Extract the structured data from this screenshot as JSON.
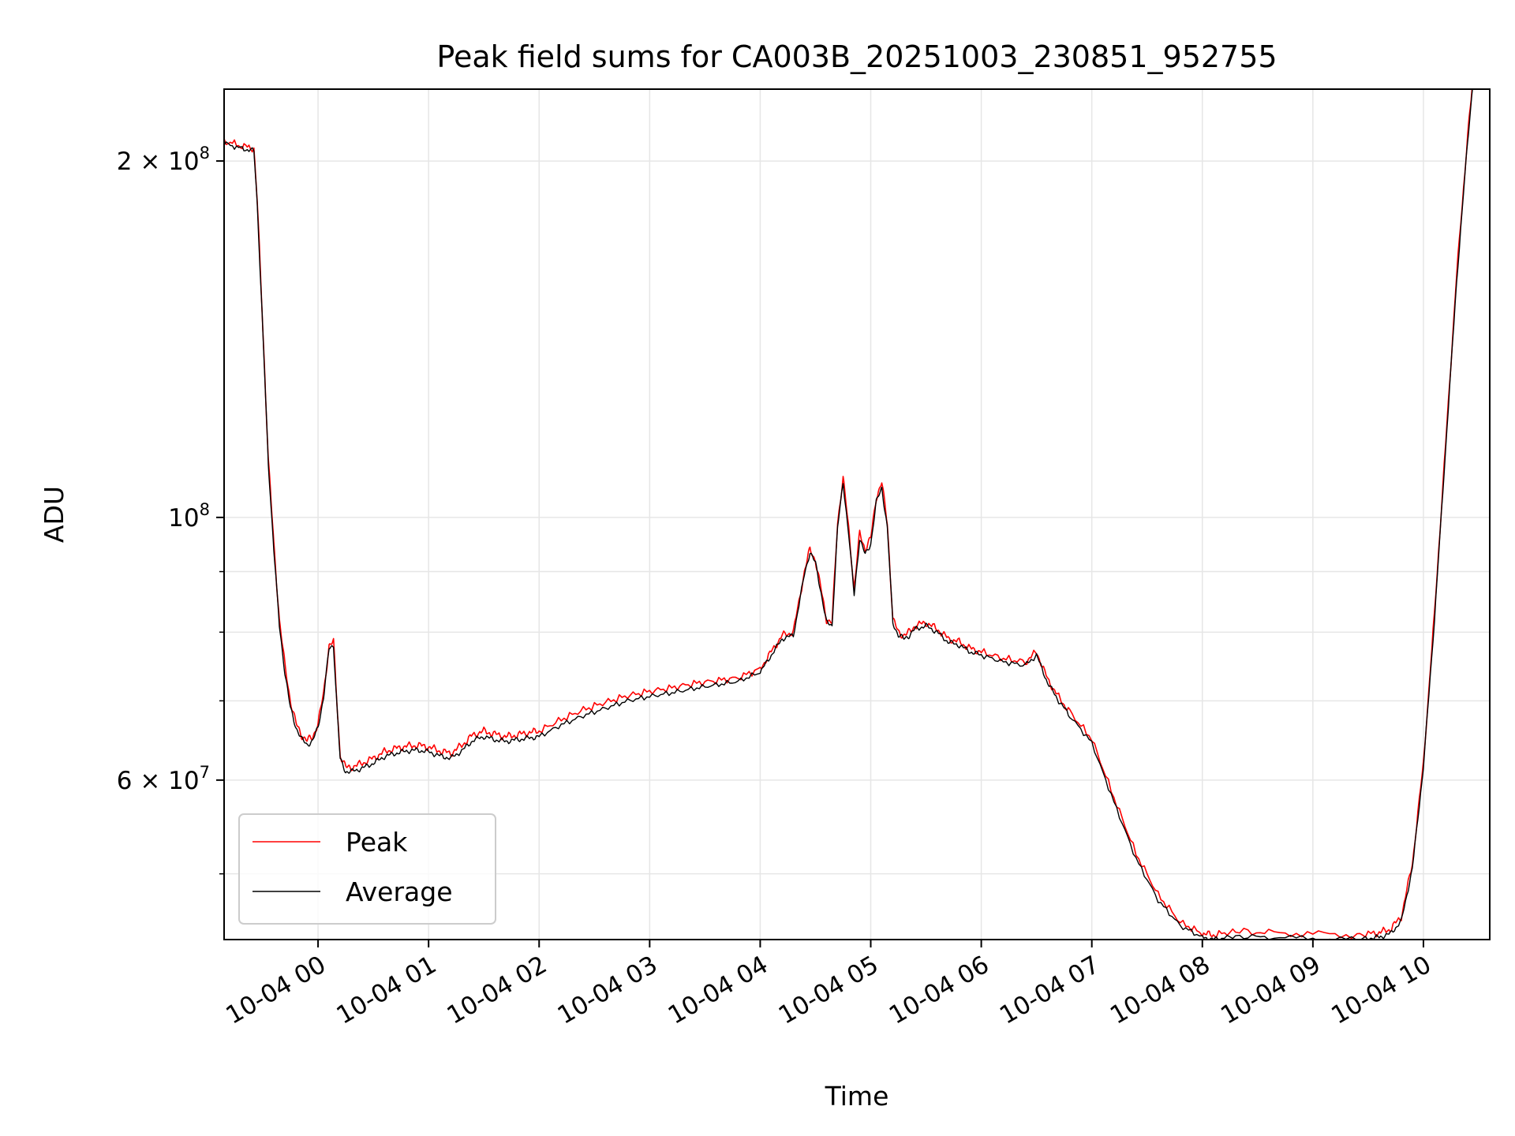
{
  "chart_data": {
    "type": "line",
    "title": "Peak field sums for CA003B_20251003_230851_952755",
    "xlabel": "Time",
    "ylabel": "ADU",
    "yscale": "log",
    "xunit": "hours since 10-04 00:00",
    "xlim": [
      -0.85,
      10.6
    ],
    "ylim": [
      44000000,
      230000000
    ],
    "grid": true,
    "legend_position": "lower-left",
    "x_ticks": [
      {
        "value": 0,
        "label": "10-04 00"
      },
      {
        "value": 1,
        "label": "10-04 01"
      },
      {
        "value": 2,
        "label": "10-04 02"
      },
      {
        "value": 3,
        "label": "10-04 03"
      },
      {
        "value": 4,
        "label": "10-04 04"
      },
      {
        "value": 5,
        "label": "10-04 05"
      },
      {
        "value": 6,
        "label": "10-04 06"
      },
      {
        "value": 7,
        "label": "10-04 07"
      },
      {
        "value": 8,
        "label": "10-04 08"
      },
      {
        "value": 9,
        "label": "10-04 09"
      },
      {
        "value": 10,
        "label": "10-04 10"
      }
    ],
    "y_ticks": [
      {
        "value": 200000000,
        "base": "2 × 10",
        "exp": "8"
      },
      {
        "value": 100000000,
        "base": "10",
        "exp": "8"
      },
      {
        "value": 60000000,
        "base": "6 × 10",
        "exp": "7"
      }
    ],
    "y_minor_ticks": [
      50000000,
      70000000,
      80000000,
      90000000
    ],
    "series": [
      {
        "name": "Peak",
        "color": "#ff0000",
        "x": [
          -0.85,
          -0.7,
          -0.58,
          -0.55,
          -0.5,
          -0.45,
          -0.4,
          -0.35,
          -0.3,
          -0.25,
          -0.2,
          -0.15,
          -0.1,
          -0.05,
          0.0,
          0.05,
          0.1,
          0.14,
          0.17,
          0.2,
          0.25,
          0.3,
          0.4,
          0.5,
          0.6,
          0.7,
          0.8,
          0.9,
          1.0,
          1.1,
          1.2,
          1.3,
          1.4,
          1.5,
          1.6,
          1.7,
          1.8,
          1.9,
          2.0,
          2.2,
          2.4,
          2.6,
          2.8,
          3.0,
          3.2,
          3.4,
          3.6,
          3.8,
          4.0,
          4.1,
          4.2,
          4.3,
          4.4,
          4.45,
          4.5,
          4.55,
          4.6,
          4.65,
          4.7,
          4.75,
          4.8,
          4.85,
          4.9,
          4.95,
          5.0,
          5.05,
          5.1,
          5.15,
          5.2,
          5.25,
          5.3,
          5.35,
          5.4,
          5.5,
          5.6,
          5.7,
          5.8,
          5.9,
          6.0,
          6.2,
          6.4,
          6.5,
          6.6,
          6.7,
          6.8,
          7.0,
          7.2,
          7.4,
          7.6,
          7.8,
          8.0,
          8.1,
          8.3,
          8.6,
          9.0,
          9.4,
          9.6,
          9.7,
          9.8,
          9.9,
          10.0,
          10.1,
          10.2,
          10.3,
          10.4,
          10.45
        ],
        "y": [
          208000000,
          206000000,
          205000000,
          185000000,
          145000000,
          112000000,
          95000000,
          82000000,
          75000000,
          70000000,
          67000000,
          65500000,
          64800000,
          65200000,
          67000000,
          71000000,
          78000000,
          78500000,
          70000000,
          63000000,
          61500000,
          61500000,
          62000000,
          62600000,
          63400000,
          63800000,
          64100000,
          64200000,
          64000000,
          63500000,
          63200000,
          64200000,
          65500000,
          66000000,
          65600000,
          65300000,
          65500000,
          65800000,
          66000000,
          67500000,
          68800000,
          69800000,
          70700000,
          71300000,
          71800000,
          72400000,
          72800000,
          73200000,
          74500000,
          77000000,
          79500000,
          80000000,
          90000000,
          94000000,
          92000000,
          87000000,
          82000000,
          81500000,
          99000000,
          108000000,
          98000000,
          87000000,
          97000000,
          94000000,
          96000000,
          104000000,
          107000000,
          99000000,
          82000000,
          80000000,
          79500000,
          80000000,
          81000000,
          81500000,
          80500000,
          79000000,
          78500000,
          77500000,
          77000000,
          76000000,
          75500000,
          77000000,
          73000000,
          70500000,
          68500000,
          65000000,
          58000000,
          52000000,
          48000000,
          45500000,
          44500000,
          44400000,
          44700000,
          44600000,
          44500000,
          44400000,
          44600000,
          44900000,
          46000000,
          51000000,
          62000000,
          83000000,
          115000000,
          160000000,
          210000000,
          235000000
        ]
      },
      {
        "name": "Average",
        "color": "#000000",
        "x": [
          -0.85,
          -0.7,
          -0.58,
          -0.55,
          -0.5,
          -0.45,
          -0.4,
          -0.35,
          -0.3,
          -0.25,
          -0.2,
          -0.15,
          -0.1,
          -0.05,
          0.0,
          0.05,
          0.1,
          0.14,
          0.17,
          0.2,
          0.25,
          0.3,
          0.4,
          0.5,
          0.6,
          0.7,
          0.8,
          0.9,
          1.0,
          1.1,
          1.2,
          1.3,
          1.4,
          1.5,
          1.6,
          1.7,
          1.8,
          1.9,
          2.0,
          2.2,
          2.4,
          2.6,
          2.8,
          3.0,
          3.2,
          3.4,
          3.6,
          3.8,
          4.0,
          4.1,
          4.2,
          4.3,
          4.4,
          4.45,
          4.5,
          4.55,
          4.6,
          4.65,
          4.7,
          4.75,
          4.8,
          4.85,
          4.9,
          4.95,
          5.0,
          5.05,
          5.1,
          5.15,
          5.2,
          5.25,
          5.3,
          5.35,
          5.4,
          5.5,
          5.6,
          5.7,
          5.8,
          5.9,
          6.0,
          6.2,
          6.4,
          6.5,
          6.6,
          6.7,
          6.8,
          7.0,
          7.2,
          7.4,
          7.6,
          7.8,
          8.0,
          8.1,
          8.3,
          8.6,
          9.0,
          9.4,
          9.6,
          9.7,
          9.8,
          9.9,
          10.0,
          10.1,
          10.2,
          10.3,
          10.4,
          10.45
        ],
        "y": [
          207000000,
          205000000,
          204000000,
          184000000,
          144000000,
          111000000,
          94000000,
          81000000,
          74000000,
          69000000,
          66500000,
          65000000,
          64300000,
          64700000,
          66500000,
          70500000,
          77500000,
          78000000,
          69500000,
          62500000,
          61000000,
          61000000,
          61400000,
          62000000,
          62800000,
          63200000,
          63500000,
          63600000,
          63400000,
          62900000,
          62600000,
          63500000,
          64800000,
          65300000,
          64900000,
          64700000,
          64900000,
          65100000,
          65300000,
          66800000,
          68000000,
          69000000,
          70000000,
          70600000,
          71100000,
          71700000,
          72200000,
          72700000,
          74000000,
          76500000,
          79000000,
          79500000,
          89500000,
          93500000,
          91500000,
          86500000,
          81500000,
          81000000,
          98000000,
          107000000,
          97000000,
          86000000,
          96000000,
          93000000,
          95000000,
          103000000,
          106000000,
          98000000,
          81500000,
          79500000,
          79000000,
          79500000,
          80500000,
          81000000,
          80000000,
          78500000,
          78000000,
          77000000,
          76500000,
          75500000,
          75000000,
          76500000,
          72500000,
          70000000,
          68000000,
          64500000,
          57500000,
          51500000,
          47500000,
          45200000,
          44200000,
          44000000,
          44300000,
          44200000,
          44100000,
          44000000,
          44200000,
          44500000,
          45600000,
          50500000,
          61500000,
          82000000,
          114000000,
          158000000,
          208000000,
          234000000
        ]
      }
    ]
  }
}
